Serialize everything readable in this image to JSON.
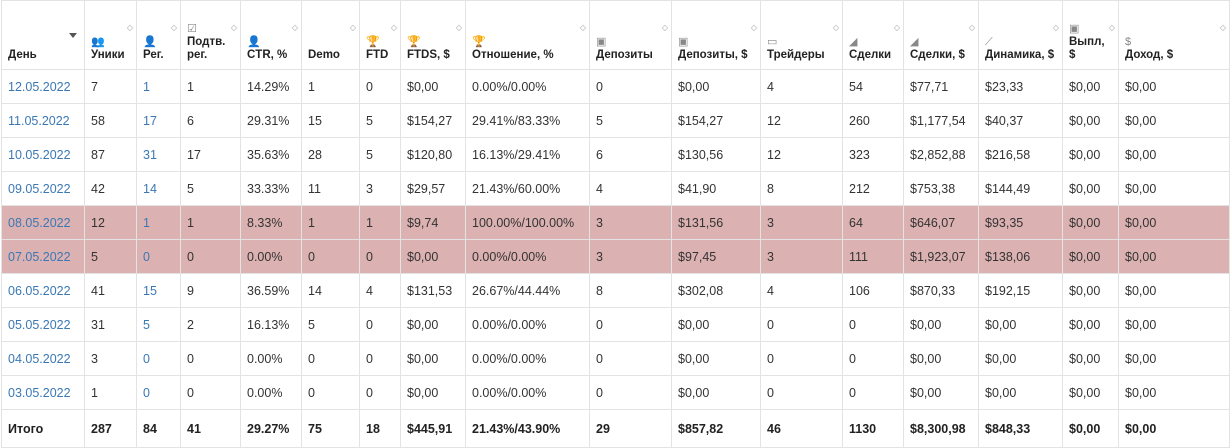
{
  "columns": [
    {
      "id": "day",
      "label": "День",
      "icon": "",
      "sortable": true,
      "active": true
    },
    {
      "id": "uniques",
      "label": "Уники",
      "icon": "👥",
      "icon_name": "users-icon",
      "sortable": true
    },
    {
      "id": "reg",
      "label": "Рег.",
      "icon": "👤",
      "icon_name": "user-icon",
      "sortable": true
    },
    {
      "id": "confirmed",
      "label": "Подтв. рег.",
      "icon": "☑",
      "icon_name": "checkbox-icon",
      "sortable": true
    },
    {
      "id": "ctr",
      "label": "CTR, %",
      "icon": "👤",
      "icon_name": "user-icon",
      "sortable": true
    },
    {
      "id": "demo",
      "label": "Demo",
      "icon": "",
      "sortable": true
    },
    {
      "id": "ftd",
      "label": "FTD",
      "icon": "🏆",
      "icon_name": "trophy-icon",
      "sortable": true
    },
    {
      "id": "ftds",
      "label": "FTDS, $",
      "icon": "🏆",
      "icon_name": "trophy-icon",
      "sortable": true
    },
    {
      "id": "ratio",
      "label": "Отношение, %",
      "icon": "🏆",
      "icon_name": "trophy-icon",
      "sortable": true
    },
    {
      "id": "deposits",
      "label": "Депозиты",
      "icon": "▣",
      "icon_name": "money-icon",
      "sortable": true
    },
    {
      "id": "deposits_sum",
      "label": "Депозиты, $",
      "icon": "▣",
      "icon_name": "money-icon",
      "sortable": true
    },
    {
      "id": "traders",
      "label": "Трейдеры",
      "icon": "▭",
      "icon_name": "card-icon",
      "sortable": true
    },
    {
      "id": "deals",
      "label": "Сделки",
      "icon": "◢",
      "icon_name": "area-chart-icon",
      "sortable": true
    },
    {
      "id": "deals_sum",
      "label": "Сделки, $",
      "icon": "◢",
      "icon_name": "area-chart-icon",
      "sortable": true
    },
    {
      "id": "dynamics",
      "label": "Динамика, $",
      "icon": "⟋",
      "icon_name": "line-chart-icon",
      "sortable": true
    },
    {
      "id": "payouts",
      "label": "Выпл, $",
      "icon": "▣",
      "icon_name": "money-icon",
      "sortable": true
    },
    {
      "id": "income",
      "label": "Доход, $",
      "icon": "$",
      "icon_name": "dollar-icon",
      "sortable": true
    }
  ],
  "rows": [
    {
      "highlight": false,
      "cells": [
        "12.05.2022",
        "7",
        "1",
        "1",
        "14.29%",
        "1",
        "0",
        "$0,00",
        "0.00%/0.00%",
        "0",
        "$0,00",
        "4",
        "54",
        "$77,71",
        "$23,33",
        "$0,00",
        "$0,00"
      ]
    },
    {
      "highlight": false,
      "cells": [
        "11.05.2022",
        "58",
        "17",
        "6",
        "29.31%",
        "15",
        "5",
        "$154,27",
        "29.41%/83.33%",
        "5",
        "$154,27",
        "12",
        "260",
        "$1,177,54",
        "$40,37",
        "$0,00",
        "$0,00"
      ]
    },
    {
      "highlight": false,
      "cells": [
        "10.05.2022",
        "87",
        "31",
        "17",
        "35.63%",
        "28",
        "5",
        "$120,80",
        "16.13%/29.41%",
        "6",
        "$130,56",
        "12",
        "323",
        "$2,852,88",
        "$216,58",
        "$0,00",
        "$0,00"
      ]
    },
    {
      "highlight": false,
      "cells": [
        "09.05.2022",
        "42",
        "14",
        "5",
        "33.33%",
        "11",
        "3",
        "$29,57",
        "21.43%/60.00%",
        "4",
        "$41,90",
        "8",
        "212",
        "$753,38",
        "$144,49",
        "$0,00",
        "$0,00"
      ]
    },
    {
      "highlight": true,
      "cells": [
        "08.05.2022",
        "12",
        "1",
        "1",
        "8.33%",
        "1",
        "1",
        "$9,74",
        "100.00%/100.00%",
        "3",
        "$131,56",
        "3",
        "64",
        "$646,07",
        "$93,35",
        "$0,00",
        "$0,00"
      ]
    },
    {
      "highlight": true,
      "cells": [
        "07.05.2022",
        "5",
        "0",
        "0",
        "0.00%",
        "0",
        "0",
        "$0,00",
        "0.00%/0.00%",
        "3",
        "$97,45",
        "3",
        "111",
        "$1,923,07",
        "$138,06",
        "$0,00",
        "$0,00"
      ]
    },
    {
      "highlight": false,
      "cells": [
        "06.05.2022",
        "41",
        "15",
        "9",
        "36.59%",
        "14",
        "4",
        "$131,53",
        "26.67%/44.44%",
        "8",
        "$302,08",
        "4",
        "106",
        "$870,33",
        "$192,15",
        "$0,00",
        "$0,00"
      ]
    },
    {
      "highlight": false,
      "cells": [
        "05.05.2022",
        "31",
        "5",
        "2",
        "16.13%",
        "5",
        "0",
        "$0,00",
        "0.00%/0.00%",
        "0",
        "$0,00",
        "0",
        "0",
        "$0,00",
        "$0,00",
        "$0,00",
        "$0,00"
      ]
    },
    {
      "highlight": false,
      "cells": [
        "04.05.2022",
        "3",
        "0",
        "0",
        "0.00%",
        "0",
        "0",
        "$0,00",
        "0.00%/0.00%",
        "0",
        "$0,00",
        "0",
        "0",
        "$0,00",
        "$0,00",
        "$0,00",
        "$0,00"
      ]
    },
    {
      "highlight": false,
      "cells": [
        "03.05.2022",
        "1",
        "0",
        "0",
        "0.00%",
        "0",
        "0",
        "$0,00",
        "0.00%/0.00%",
        "0",
        "$0,00",
        "0",
        "0",
        "$0,00",
        "$0,00",
        "$0,00",
        "$0,00"
      ]
    }
  ],
  "totals": [
    "Итого",
    "287",
    "84",
    "41",
    "29.27%",
    "75",
    "18",
    "$445,91",
    "21.43%/43.90%",
    "29",
    "$857,82",
    "46",
    "1130",
    "$8,300,98",
    "$848,33",
    "$0,00",
    "$0,00"
  ],
  "colors": {
    "highlight_row": "#dcb1b1",
    "link": "#3a78b5",
    "border": "#e3e3e3"
  }
}
